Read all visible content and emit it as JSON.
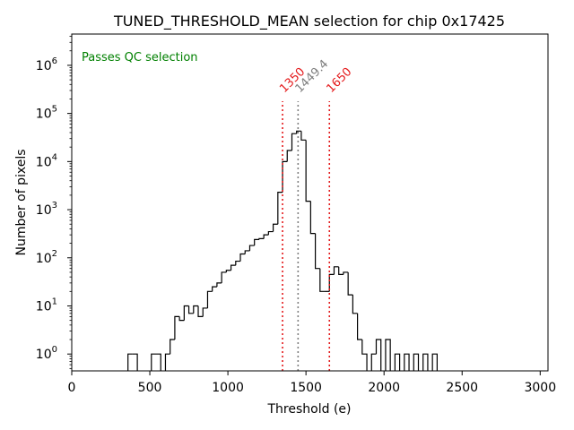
{
  "chart_data": {
    "type": "histogram",
    "title": "TUNED_THRESHOLD_MEAN selection for chip 0x17425",
    "xlabel": "Threshold (e)",
    "ylabel": "Number of pixels",
    "xlim": [
      0,
      3050
    ],
    "ylim_log10": [
      -0.35,
      6.65
    ],
    "yscale": "log",
    "grid": false,
    "x_ticks": [
      0,
      500,
      1000,
      1500,
      2000,
      2500,
      3000
    ],
    "x_tick_labels": [
      "0",
      "500",
      "1000",
      "1500",
      "2000",
      "2500",
      "3000"
    ],
    "y_ticks_exp": [
      0,
      1,
      2,
      3,
      4,
      5,
      6
    ],
    "y_tick_base": "10",
    "y_tick_exponents": [
      "0",
      "1",
      "2",
      "3",
      "4",
      "5",
      "6"
    ],
    "bin_width": 30,
    "bins": [
      {
        "x0": 360,
        "count": 1
      },
      {
        "x0": 390,
        "count": 1
      },
      {
        "x0": 510,
        "count": 1
      },
      {
        "x0": 540,
        "count": 1
      },
      {
        "x0": 600,
        "count": 1
      },
      {
        "x0": 630,
        "count": 2
      },
      {
        "x0": 660,
        "count": 6
      },
      {
        "x0": 690,
        "count": 5
      },
      {
        "x0": 720,
        "count": 10
      },
      {
        "x0": 750,
        "count": 7
      },
      {
        "x0": 780,
        "count": 10
      },
      {
        "x0": 810,
        "count": 6
      },
      {
        "x0": 840,
        "count": 9
      },
      {
        "x0": 870,
        "count": 20
      },
      {
        "x0": 900,
        "count": 25
      },
      {
        "x0": 930,
        "count": 30
      },
      {
        "x0": 960,
        "count": 50
      },
      {
        "x0": 990,
        "count": 55
      },
      {
        "x0": 1020,
        "count": 70
      },
      {
        "x0": 1050,
        "count": 85
      },
      {
        "x0": 1080,
        "count": 120
      },
      {
        "x0": 1110,
        "count": 140
      },
      {
        "x0": 1140,
        "count": 180
      },
      {
        "x0": 1170,
        "count": 240
      },
      {
        "x0": 1200,
        "count": 250
      },
      {
        "x0": 1230,
        "count": 300
      },
      {
        "x0": 1260,
        "count": 350
      },
      {
        "x0": 1290,
        "count": 500
      },
      {
        "x0": 1320,
        "count": 2300
      },
      {
        "x0": 1350,
        "count": 10000
      },
      {
        "x0": 1380,
        "count": 17000
      },
      {
        "x0": 1410,
        "count": 38000
      },
      {
        "x0": 1440,
        "count": 43000
      },
      {
        "x0": 1470,
        "count": 28000
      },
      {
        "x0": 1500,
        "count": 1500
      },
      {
        "x0": 1530,
        "count": 320
      },
      {
        "x0": 1560,
        "count": 60
      },
      {
        "x0": 1590,
        "count": 20
      },
      {
        "x0": 1620,
        "count": 20
      },
      {
        "x0": 1650,
        "count": 45
      },
      {
        "x0": 1680,
        "count": 65
      },
      {
        "x0": 1710,
        "count": 45
      },
      {
        "x0": 1740,
        "count": 50
      },
      {
        "x0": 1770,
        "count": 17
      },
      {
        "x0": 1800,
        "count": 7
      },
      {
        "x0": 1830,
        "count": 2
      },
      {
        "x0": 1860,
        "count": 1
      },
      {
        "x0": 1920,
        "count": 1
      },
      {
        "x0": 1950,
        "count": 2
      },
      {
        "x0": 2010,
        "count": 2
      },
      {
        "x0": 2070,
        "count": 1
      },
      {
        "x0": 2130,
        "count": 1
      },
      {
        "x0": 2190,
        "count": 1
      },
      {
        "x0": 2250,
        "count": 1
      },
      {
        "x0": 2310,
        "count": 1
      }
    ],
    "vlines": [
      {
        "x": 1350,
        "label": "1350",
        "color": "#e41a1c",
        "style": "dotted"
      },
      {
        "x": 1449.4,
        "label": "1449.4",
        "color": "#808080",
        "style": "dotted"
      },
      {
        "x": 1650,
        "label": "1650",
        "color": "#e41a1c",
        "style": "dotted"
      }
    ],
    "annotation": {
      "text": "Passes QC selection",
      "color": "#008000"
    }
  }
}
